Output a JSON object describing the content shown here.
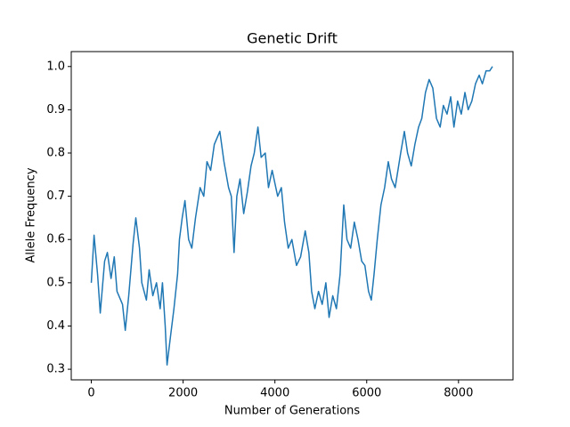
{
  "chart_data": {
    "type": "line",
    "title": "Genetic Drift",
    "x_label": "Number of Generations",
    "y_label": "Allele Frequency",
    "color": "#1f77b4",
    "x": [
      0,
      60,
      136,
      195,
      290,
      350,
      430,
      500,
      560,
      680,
      740,
      815,
      910,
      970,
      1050,
      1100,
      1200,
      1260,
      1340,
      1420,
      1500,
      1550,
      1610,
      1650,
      1730,
      1800,
      1880,
      1920,
      1980,
      2040,
      2120,
      2190,
      2270,
      2370,
      2450,
      2520,
      2600,
      2680,
      2800,
      2890,
      2990,
      3050,
      3110,
      3170,
      3240,
      3320,
      3400,
      3480,
      3550,
      3630,
      3700,
      3790,
      3860,
      3940,
      4060,
      4140,
      4210,
      4290,
      4370,
      4470,
      4560,
      4660,
      4740,
      4800,
      4870,
      4950,
      5030,
      5110,
      5180,
      5260,
      5340,
      5420,
      5500,
      5570,
      5650,
      5730,
      5810,
      5890,
      5960,
      6040,
      6100,
      6160,
      6230,
      6310,
      6390,
      6470,
      6540,
      6620,
      6740,
      6820,
      6890,
      6970,
      7050,
      7130,
      7200,
      7280,
      7360,
      7440,
      7520,
      7600,
      7670,
      7750,
      7830,
      7900,
      7980,
      8060,
      8140,
      8210,
      8290,
      8370,
      8450,
      8520,
      8600,
      8680,
      8740
    ],
    "values": [
      0.5,
      0.61,
      0.52,
      0.43,
      0.55,
      0.57,
      0.51,
      0.56,
      0.48,
      0.45,
      0.39,
      0.47,
      0.59,
      0.65,
      0.58,
      0.5,
      0.46,
      0.53,
      0.47,
      0.5,
      0.44,
      0.5,
      0.4,
      0.31,
      0.38,
      0.44,
      0.52,
      0.6,
      0.65,
      0.69,
      0.6,
      0.58,
      0.65,
      0.72,
      0.7,
      0.78,
      0.76,
      0.82,
      0.85,
      0.78,
      0.72,
      0.7,
      0.57,
      0.7,
      0.74,
      0.66,
      0.71,
      0.77,
      0.8,
      0.86,
      0.79,
      0.8,
      0.72,
      0.76,
      0.7,
      0.72,
      0.64,
      0.58,
      0.6,
      0.54,
      0.56,
      0.62,
      0.57,
      0.48,
      0.44,
      0.48,
      0.45,
      0.5,
      0.42,
      0.47,
      0.44,
      0.52,
      0.68,
      0.6,
      0.58,
      0.64,
      0.6,
      0.55,
      0.54,
      0.48,
      0.46,
      0.52,
      0.6,
      0.68,
      0.72,
      0.78,
      0.74,
      0.72,
      0.8,
      0.85,
      0.8,
      0.77,
      0.82,
      0.86,
      0.88,
      0.94,
      0.97,
      0.95,
      0.88,
      0.86,
      0.91,
      0.89,
      0.93,
      0.86,
      0.92,
      0.89,
      0.94,
      0.9,
      0.92,
      0.96,
      0.98,
      0.96,
      0.99,
      0.99,
      1.0
    ],
    "xlim": [
      -437,
      9187
    ],
    "ylim": [
      0.2755,
      1.0345
    ],
    "xticks": [
      0,
      2000,
      4000,
      6000,
      8000
    ],
    "yticks": [
      0.3,
      0.4,
      0.5,
      0.6,
      0.7,
      0.8,
      0.9,
      {
        "value": 1,
        "label": "1.0"
      }
    ]
  }
}
